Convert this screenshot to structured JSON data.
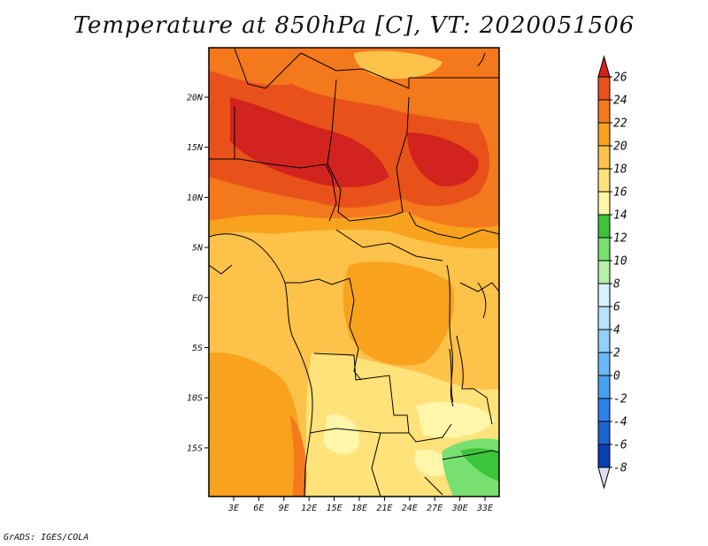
{
  "title": "Temperature at 850hPa [C], VT: 2020051506",
  "footer": "GrADS: IGES/COLA",
  "map": {
    "lat_ticks": [
      "20N",
      "15N",
      "10N",
      "5N",
      "EQ",
      "5S",
      "10S",
      "15S"
    ],
    "lon_ticks": [
      "3E",
      "6E",
      "9E",
      "12E",
      "15E",
      "18E",
      "21E",
      "24E",
      "27E",
      "30E",
      "33E"
    ]
  },
  "colorbar": {
    "units": "C",
    "levels": [
      "-8",
      "-6",
      "-4",
      "-2",
      "0",
      "2",
      "4",
      "6",
      "8",
      "10",
      "12",
      "14",
      "16",
      "18",
      "20",
      "22",
      "24",
      "26"
    ],
    "colors": [
      "#0a0a78",
      "#0a3fb4",
      "#1c64d2",
      "#2d82ea",
      "#4aa0f0",
      "#6ab8f5",
      "#92d0f8",
      "#b8e3fa",
      "#d8f2fd",
      "#b6f0a8",
      "#78e070",
      "#3cc43c",
      "#fff6aa",
      "#ffe27a",
      "#fcc24a",
      "#f9a21e",
      "#f4781c",
      "#e8521a",
      "#d2231e"
    ],
    "under_color": "#dcdcf5"
  }
}
